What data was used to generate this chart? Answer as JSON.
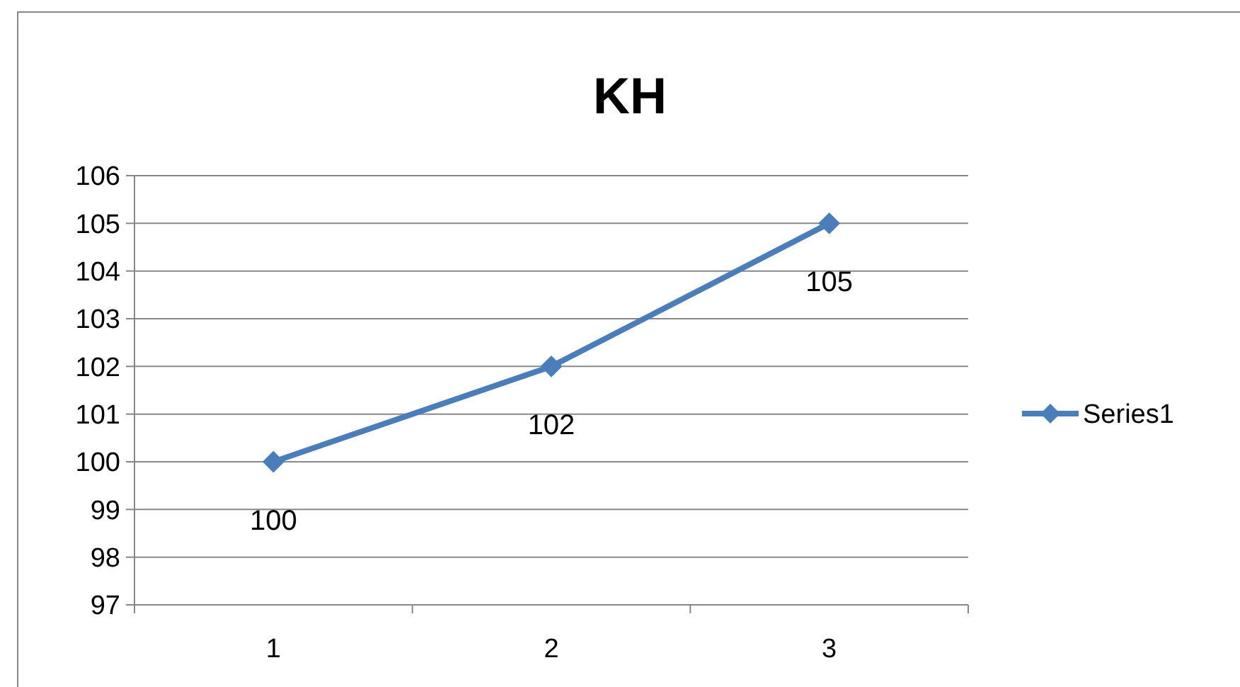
{
  "chart_data": {
    "type": "line",
    "title": "KH",
    "categories": [
      "1",
      "2",
      "3"
    ],
    "series": [
      {
        "name": "Series1",
        "color": "#4a7ebb",
        "values": [
          100,
          102,
          105
        ]
      }
    ],
    "ylim": [
      97,
      106
    ],
    "yticks": [
      97,
      98,
      99,
      100,
      101,
      102,
      103,
      104,
      105,
      106
    ],
    "grid": "y",
    "legend": "right",
    "marker": "diamond",
    "line_style": "solid",
    "data_labels": true
  }
}
